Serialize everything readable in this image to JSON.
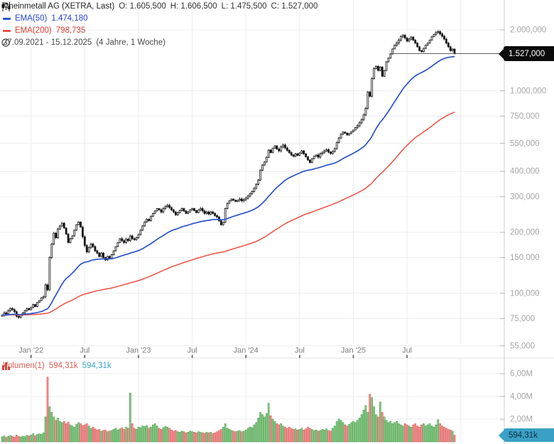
{
  "header": {
    "instrument": "Rheinmetall AG (XETRA, Last)",
    "open": "O: 1.605,500",
    "high": "H: 1.606,500",
    "low": "L: 1.475,500",
    "close": "C: 1.527,000",
    "ema50_label": "EMA(50)",
    "ema50_value": "1.474,180",
    "ema200_label": "EMA(200)",
    "ema200_value": "798,735",
    "date_range": "27.09.2021 - 15.12.2025",
    "range_detail": "(4 Jahre, 1 Woche)"
  },
  "volume_header": {
    "label": "Volumen(1)",
    "value_red": "594,31k",
    "value_teal": "594,31k"
  },
  "badges": {
    "last_price": "1.527,000",
    "last_volume": "594,31k"
  },
  "colors": {
    "ema50_line": "#2a52cc",
    "ema50_text": "#2743d8",
    "ema200_line": "#ee4f43",
    "ema200_text": "#e03a2f",
    "candle": "#141414",
    "vol_up_fill": "#8cc98c",
    "vol_up_stroke": "#46a046",
    "vol_down_fill": "#f09090",
    "vol_down_stroke": "#dd5a5a",
    "grid": "#ececec",
    "axis_line": "#cccccc",
    "divider": "#e2e2e2",
    "price_axis_text": "#a5a5a5",
    "x_axis_text": "#7c7c7c",
    "badge_price_bg": "#0b0b0b",
    "badge_volume_bg": "#3ba0c6",
    "last_price_line": "#555555",
    "volume_header_red": "#e05b52",
    "volume_header_teal": "#3aa4c8"
  },
  "chart_data": {
    "type": "candlestick",
    "title": "Rheinmetall AG (XETRA, Last)",
    "timeframe": "1 Woche",
    "range": "27.09.2021 - 15.12.2025 (4 Jahre, 1 Woche)",
    "scale": "log",
    "grid": true,
    "last": {
      "open": 1605.5,
      "high": 1606.5,
      "low": 1475.5,
      "close": 1527.0,
      "volume_k": 594.31
    },
    "overlays": [
      {
        "name": "EMA(50)",
        "period": 50,
        "last_value": 1474.18
      },
      {
        "name": "EMA(200)",
        "period": 200,
        "last_value": 798.735
      }
    ],
    "price_axis": {
      "ticks": [
        {
          "label": "2.000,000",
          "value": 2000
        },
        {
          "label": "1.000,000",
          "value": 1000
        },
        {
          "label": "750,000",
          "value": 750
        },
        {
          "label": "550,000",
          "value": 550
        },
        {
          "label": "400,000",
          "value": 400
        },
        {
          "label": "300,000",
          "value": 300
        },
        {
          "label": "200,000",
          "value": 200
        },
        {
          "label": "150,000",
          "value": 150
        },
        {
          "label": "100,000",
          "value": 100
        },
        {
          "label": "75,000",
          "value": 75
        },
        {
          "label": "55,000",
          "value": 55
        }
      ],
      "last_price": {
        "label": "1.527,000",
        "value": 1527
      }
    },
    "volume_axis": {
      "ticks": [
        {
          "label": "6,00M",
          "value": 6.0
        },
        {
          "label": "4,00M",
          "value": 4.0
        },
        {
          "label": "2,00M",
          "value": 2.0
        }
      ],
      "last": {
        "label": "594,31k",
        "value": 0.594
      }
    },
    "x_axis": {
      "ticks": [
        {
          "label": "Jan '22",
          "week": 14
        },
        {
          "label": "Jul",
          "week": 40
        },
        {
          "label": "Jan '23",
          "week": 66
        },
        {
          "label": "Jul",
          "week": 92
        },
        {
          "label": "Jan '24",
          "week": 118
        },
        {
          "label": "Jul",
          "week": 144
        },
        {
          "label": "Jan '25",
          "week": 170
        },
        {
          "label": "Jul",
          "week": 196
        }
      ],
      "extra_gridline_weeks": [
        222
      ]
    },
    "weekly_closes": [
      78,
      80,
      79,
      82,
      84,
      83,
      81,
      77,
      76,
      78,
      80,
      82,
      84,
      83,
      85,
      88,
      86,
      90,
      92,
      95,
      96,
      110,
      104,
      150,
      175,
      198,
      188,
      208,
      215,
      222,
      210,
      196,
      178,
      186,
      192,
      205,
      218,
      225,
      212,
      190,
      172,
      160,
      168,
      175,
      170,
      162,
      158,
      152,
      158,
      150,
      146,
      152,
      148,
      155,
      162,
      170,
      178,
      186,
      182,
      178,
      185,
      182,
      192,
      186,
      184,
      188,
      195,
      205,
      215,
      225,
      232,
      228,
      240,
      248,
      255,
      262,
      258,
      252,
      262,
      268,
      272,
      265,
      258,
      252,
      244,
      250,
      256,
      262,
      255,
      248,
      252,
      258,
      262,
      256,
      250,
      258,
      262,
      255,
      248,
      252,
      246,
      252,
      248,
      242,
      238,
      228,
      218,
      224,
      262,
      278,
      286,
      292,
      288,
      284,
      288,
      292,
      286,
      290,
      295,
      302,
      310,
      318,
      330,
      345,
      362,
      405,
      430,
      445,
      470,
      510,
      495,
      520,
      535,
      515,
      505,
      528,
      540,
      522,
      508,
      495,
      482,
      475,
      488,
      480,
      492,
      505,
      488,
      472,
      455,
      442,
      462,
      475,
      482,
      470,
      488,
      495,
      505,
      512,
      498,
      490,
      502,
      518,
      555,
      585,
      610,
      625,
      618,
      605,
      615,
      628,
      640,
      658,
      672,
      695,
      720,
      760,
      820,
      985,
      940,
      1150,
      1290,
      1320,
      1260,
      1310,
      1180,
      1260,
      1390,
      1450,
      1520,
      1610,
      1680,
      1720,
      1780,
      1850,
      1880,
      1820,
      1760,
      1800,
      1840,
      1780,
      1720,
      1650,
      1580,
      1560,
      1620,
      1680,
      1720,
      1780,
      1850,
      1900,
      1940,
      1960,
      1910,
      1860,
      1800,
      1720,
      1650,
      1580,
      1605,
      1527
    ],
    "weekly_volumes_millions": [
      0.45,
      0.52,
      0.4,
      0.48,
      0.55,
      0.5,
      0.42,
      0.6,
      0.48,
      0.44,
      0.5,
      0.46,
      0.58,
      0.52,
      0.6,
      0.72,
      0.55,
      0.65,
      0.7,
      0.68,
      0.8,
      2.2,
      5.7,
      3.1,
      2.6,
      2.2,
      1.9,
      2.1,
      1.8,
      1.7,
      1.8,
      1.6,
      1.75,
      1.5,
      1.4,
      1.3,
      1.55,
      1.7,
      1.6,
      1.45,
      1.5,
      1.6,
      1.4,
      1.2,
      1.3,
      1.15,
      1.05,
      1.1,
      0.95,
      1.0,
      1.05,
      0.9,
      0.95,
      1.0,
      1.1,
      1.2,
      1.05,
      1.15,
      1.25,
      1.1,
      1.3,
      1.2,
      4.3,
      1.6,
      1.2,
      1.1,
      1.3,
      1.25,
      1.4,
      1.35,
      1.45,
      1.2,
      1.3,
      1.5,
      1.6,
      1.4,
      1.2,
      1.1,
      1.25,
      1.35,
      1.3,
      1.2,
      1.05,
      0.95,
      1.0,
      0.9,
      0.85,
      0.95,
      0.9,
      0.8,
      0.85,
      0.95,
      0.9,
      0.85,
      0.8,
      0.9,
      0.85,
      0.8,
      0.75,
      0.85,
      0.8,
      0.85,
      0.75,
      0.8,
      0.9,
      1.0,
      1.1,
      1.3,
      1.6,
      1.2,
      1.1,
      1.0,
      0.95,
      0.9,
      0.95,
      1.0,
      0.9,
      0.95,
      1.05,
      1.2,
      1.3,
      1.25,
      1.5,
      1.7,
      2.1,
      2.6,
      2.4,
      2.2,
      2.5,
      3.4,
      2.3,
      2.0,
      1.8,
      1.6,
      1.5,
      1.6,
      1.4,
      1.3,
      1.2,
      1.3,
      1.2,
      1.1,
      1.15,
      1.05,
      1.1,
      1.2,
      1.05,
      1.15,
      1.3,
      1.2,
      1.1,
      1.0,
      1.05,
      0.95,
      1.0,
      1.1,
      1.05,
      1.15,
      1.0,
      0.95,
      1.2,
      1.4,
      1.8,
      2.0,
      1.9,
      1.7,
      1.5,
      1.4,
      1.55,
      1.7,
      1.8,
      1.7,
      1.9,
      2.1,
      2.4,
      2.8,
      3.2,
      2.6,
      4.2,
      3.9,
      3.1,
      2.4,
      2.2,
      3.5,
      2.6,
      2.2,
      1.9,
      1.7,
      1.8,
      1.6,
      1.7,
      1.8,
      1.6,
      1.5,
      1.4,
      1.6,
      1.5,
      1.4,
      1.3,
      1.5,
      1.6,
      1.4,
      1.3,
      1.5,
      1.6,
      1.4,
      1.5,
      1.6,
      1.4,
      1.3,
      1.5,
      1.95,
      1.6,
      1.4,
      1.3,
      1.2,
      1.1,
      1.05,
      0.95,
      0.594
    ]
  }
}
